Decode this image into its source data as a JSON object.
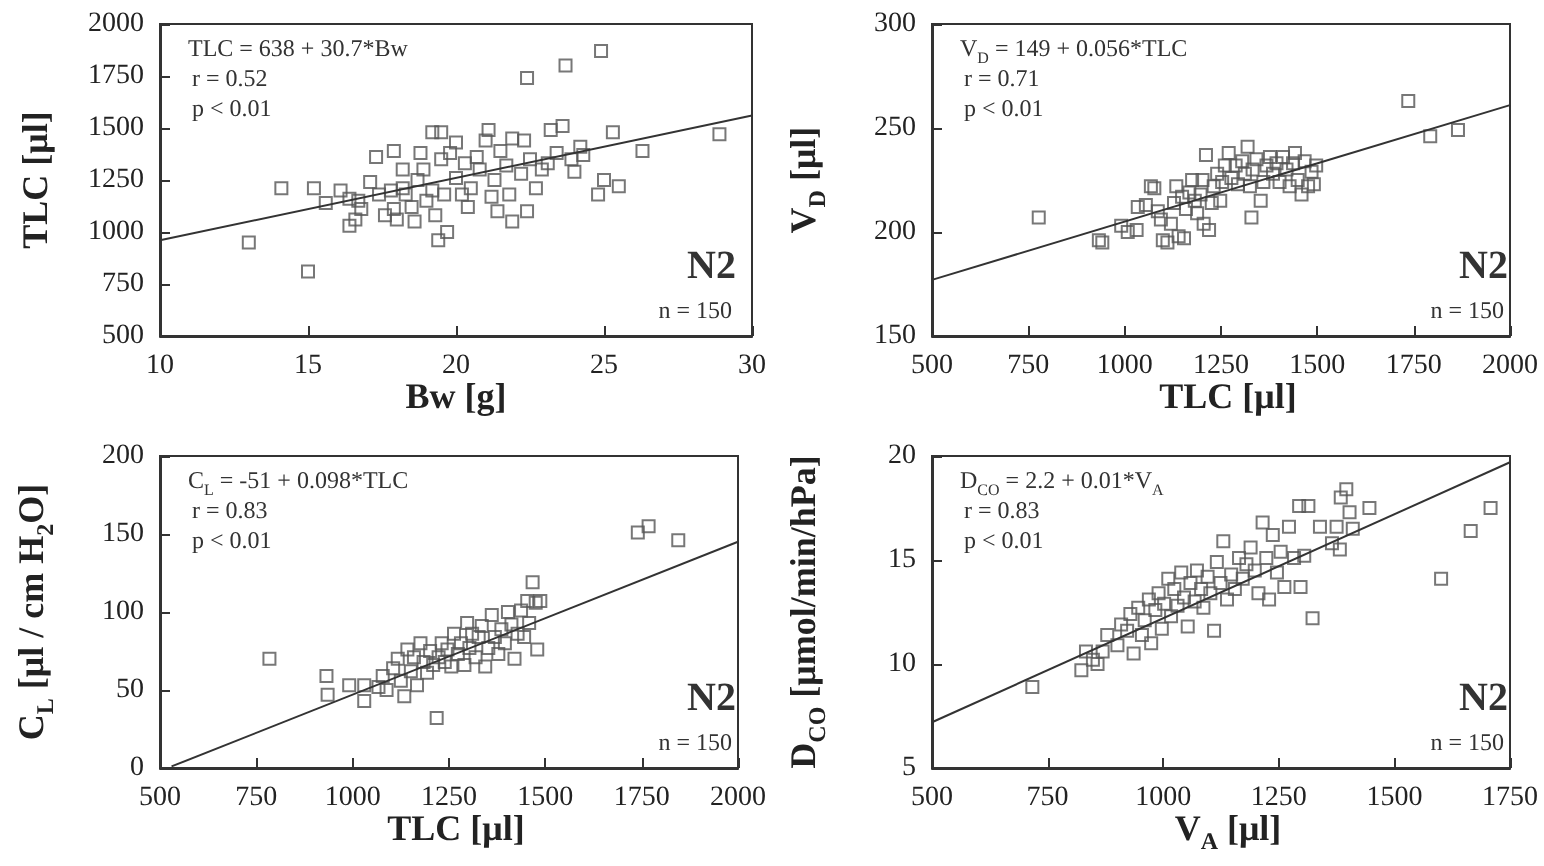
{
  "chart_data": [
    {
      "type": "scatter",
      "xlabel": "Bw [g]",
      "ylabel": "TLC [μl]",
      "xlim": [
        10,
        30
      ],
      "xticks": [
        10,
        15,
        20,
        25,
        30
      ],
      "ylim": [
        500,
        2000
      ],
      "yticks": [
        500,
        750,
        1000,
        1250,
        1500,
        1750,
        2000
      ],
      "marker": "square",
      "annotations": [
        "TLC = 638 + 30.7*Bw",
        "r = 0.52",
        "p < 0.01",
        "N2",
        "n = 150"
      ],
      "series": [
        {
          "color": "#555555",
          "x": [
            13.0,
            14.1,
            15.0,
            15.2,
            15.6,
            16.1,
            16.4,
            16.4,
            16.6,
            16.7,
            16.8,
            17.1,
            17.3,
            17.4,
            17.6,
            17.8,
            17.9,
            17.9,
            18.0,
            18.2,
            18.2,
            18.3,
            18.5,
            18.6,
            18.7,
            18.8,
            18.9,
            19.0,
            19.2,
            19.2,
            19.3,
            19.4,
            19.5,
            19.5,
            19.6,
            19.7,
            19.8,
            20.0,
            20.0,
            20.2,
            20.3,
            20.4,
            20.5,
            20.7,
            20.8,
            21.0,
            21.1,
            21.2,
            21.3,
            21.4,
            21.5,
            21.7,
            21.8,
            21.9,
            21.9,
            22.2,
            22.3,
            22.4,
            22.4,
            22.5,
            22.7,
            22.9,
            23.1,
            23.2,
            23.4,
            23.6,
            23.7,
            23.9,
            24.0,
            24.2,
            24.3,
            24.8,
            24.9,
            25.0,
            25.3,
            25.5,
            26.3,
            28.9
          ],
          "values": [
            950,
            1210,
            810,
            1210,
            1140,
            1200,
            1160,
            1030,
            1060,
            1150,
            1110,
            1240,
            1360,
            1180,
            1080,
            1200,
            1390,
            1110,
            1060,
            1300,
            1210,
            1180,
            1120,
            1050,
            1250,
            1380,
            1300,
            1150,
            1480,
            1200,
            1080,
            960,
            1350,
            1480,
            1180,
            1000,
            1380,
            1260,
            1430,
            1180,
            1330,
            1120,
            1210,
            1360,
            1300,
            1440,
            1490,
            1170,
            1250,
            1100,
            1390,
            1320,
            1180,
            1450,
            1050,
            1280,
            1440,
            1100,
            1740,
            1350,
            1210,
            1300,
            1330,
            1490,
            1380,
            1510,
            1800,
            1350,
            1290,
            1410,
            1370,
            1180,
            1870,
            1250,
            1480,
            1220,
            1390,
            1470
          ]
        },
        {
          "type": "line",
          "marker": "none",
          "color": "#333333",
          "x": [
            10,
            30
          ],
          "values": [
            960,
            1560
          ]
        }
      ]
    },
    {
      "type": "scatter",
      "xlabel": "TLC [μl]",
      "ylabel": "V$_{D}$ [μl]",
      "xlim": [
        500,
        2000
      ],
      "xticks": [
        500,
        750,
        1000,
        1250,
        1500,
        1750,
        2000
      ],
      "ylim": [
        150,
        300
      ],
      "yticks": [
        150,
        200,
        250,
        300
      ],
      "marker": "square",
      "annotations": [
        "V$_{D}$ = 149 + 0.056*TLC",
        "r = 0.71",
        "p < 0.01",
        "N2",
        "n = 150"
      ],
      "series": [
        {
          "color": "#555555",
          "x": [
            777,
            933,
            942,
            991,
            1008,
            1031,
            1034,
            1055,
            1068,
            1077,
            1086,
            1094,
            1099,
            1111,
            1120,
            1128,
            1134,
            1140,
            1149,
            1154,
            1159,
            1168,
            1175,
            1182,
            1188,
            1197,
            1202,
            1205,
            1211,
            1219,
            1226,
            1231,
            1240,
            1248,
            1253,
            1260,
            1270,
            1277,
            1288,
            1294,
            1305,
            1312,
            1319,
            1325,
            1332,
            1342,
            1329,
            1353,
            1360,
            1368,
            1377,
            1385,
            1394,
            1402,
            1411,
            1420,
            1428,
            1437,
            1442,
            1449,
            1459,
            1467,
            1476,
            1485,
            1491,
            1497,
            1736,
            1793,
            1865
          ],
          "values": [
            207,
            196,
            195,
            203,
            200,
            201,
            212,
            213,
            222,
            221,
            210,
            206,
            196,
            195,
            204,
            214,
            222,
            198,
            217,
            197,
            211,
            219,
            225,
            215,
            209,
            218,
            225,
            204,
            237,
            201,
            214,
            222,
            228,
            215,
            224,
            232,
            238,
            226,
            232,
            223,
            234,
            228,
            241,
            222,
            230,
            235,
            207,
            215,
            224,
            232,
            236,
            228,
            233,
            224,
            236,
            230,
            222,
            233,
            238,
            225,
            218,
            234,
            222,
            229,
            223,
            232,
            263,
            246,
            249
          ]
        },
        {
          "type": "line",
          "marker": "none",
          "color": "#333333",
          "x": [
            500,
            2000
          ],
          "values": [
            177,
            261
          ]
        }
      ]
    },
    {
      "type": "scatter",
      "xlabel": "TLC [μl]",
      "ylabel": "C$_{L}$ [μl / cm H$_{2}$O]",
      "xlim": [
        500,
        2000
      ],
      "xticks": [
        500,
        750,
        1000,
        1250,
        1500,
        1750,
        2000
      ],
      "ylim": [
        0,
        200
      ],
      "yticks": [
        0,
        50,
        100,
        150,
        200
      ],
      "marker": "square",
      "annotations": [
        "C$_{L}$ = -51 + 0.098*TLC",
        "r = 0.83",
        "p < 0.01",
        "N2",
        "n = 150"
      ],
      "series": [
        {
          "color": "#555555",
          "x": [
            784,
            932,
            935,
            991,
            1030,
            1030,
            1067,
            1078,
            1088,
            1105,
            1117,
            1125,
            1134,
            1142,
            1151,
            1159,
            1167,
            1176,
            1184,
            1193,
            1201,
            1209,
            1218,
            1223,
            1231,
            1239,
            1246,
            1256,
            1263,
            1273,
            1281,
            1290,
            1297,
            1303,
            1310,
            1319,
            1327,
            1335,
            1344,
            1352,
            1361,
            1369,
            1378,
            1386,
            1395,
            1403,
            1412,
            1420,
            1428,
            1437,
            1445,
            1453,
            1458,
            1467,
            1475,
            1479,
            1487,
            1740,
            1768,
            1845
          ],
          "values": [
            70,
            59,
            47,
            53,
            43,
            53,
            52,
            59,
            50,
            64,
            70,
            56,
            46,
            76,
            62,
            71,
            53,
            80,
            68,
            61,
            75,
            66,
            32,
            71,
            80,
            68,
            76,
            65,
            86,
            73,
            80,
            66,
            93,
            77,
            86,
            71,
            84,
            91,
            65,
            77,
            98,
            84,
            73,
            89,
            80,
            100,
            92,
            70,
            86,
            101,
            84,
            107,
            93,
            119,
            106,
            76,
            107,
            151,
            155,
            146
          ]
        },
        {
          "type": "line",
          "marker": "none",
          "color": "#333333",
          "x": [
            530,
            2000
          ],
          "values": [
            1,
            145
          ]
        }
      ]
    },
    {
      "type": "scatter",
      "xlabel": "V$_{A}$ [μl]",
      "ylabel": "D$_{CO}$ [μmol/min/hPa]",
      "xlim": [
        500,
        1750
      ],
      "xticks": [
        500,
        750,
        1000,
        1250,
        1500,
        1750
      ],
      "ylim": [
        5,
        20
      ],
      "yticks": [
        5,
        10,
        15,
        20
      ],
      "marker": "square",
      "annotations": [
        "D$_{CO}$ = 2.2 + 0.01*V$_{A}$",
        "r = 0.83",
        "p < 0.01",
        "N2",
        "n = 150"
      ],
      "series": [
        {
          "color": "#555555",
          "x": [
            717,
            823,
            833,
            848,
            858,
            869,
            879,
            901,
            909,
            922,
            929,
            936,
            946,
            954,
            960,
            969,
            974,
            983,
            990,
            997,
            1002,
            1011,
            1017,
            1024,
            1031,
            1039,
            1045,
            1053,
            1059,
            1068,
            1073,
            1082,
            1087,
            1096,
            1102,
            1110,
            1116,
            1124,
            1130,
            1138,
            1147,
            1155,
            1164,
            1172,
            1180,
            1189,
            1198,
            1206,
            1215,
            1223,
            1229,
            1237,
            1246,
            1254,
            1262,
            1272,
            1283,
            1294,
            1297,
            1305,
            1314,
            1323,
            1339,
            1365,
            1375,
            1382,
            1384,
            1396,
            1403,
            1410,
            1446,
            1601,
            1665,
            1708
          ],
          "values": [
            8.9,
            9.7,
            10.6,
            10.2,
            10.0,
            10.6,
            11.4,
            10.9,
            11.9,
            11.6,
            12.4,
            10.5,
            12.7,
            11.4,
            12.1,
            13.1,
            11.0,
            12.6,
            13.4,
            11.7,
            12.9,
            14.1,
            12.3,
            13.6,
            12.8,
            14.4,
            13.2,
            11.8,
            13.9,
            13.0,
            14.5,
            13.6,
            12.7,
            14.2,
            13.4,
            11.6,
            14.9,
            13.9,
            15.9,
            13.1,
            14.3,
            13.6,
            15.1,
            14.1,
            14.8,
            15.6,
            14.5,
            13.4,
            16.8,
            15.1,
            13.1,
            16.2,
            14.4,
            15.4,
            13.7,
            16.6,
            15.1,
            17.6,
            13.7,
            15.2,
            17.6,
            12.2,
            16.6,
            15.8,
            16.6,
            15.5,
            18.0,
            18.4,
            17.3,
            16.5,
            17.5,
            14.1,
            16.4,
            17.5
          ]
        },
        {
          "type": "line",
          "marker": "none",
          "color": "#333333",
          "x": [
            500,
            1750
          ],
          "values": [
            7.2,
            19.7
          ]
        }
      ]
    }
  ]
}
